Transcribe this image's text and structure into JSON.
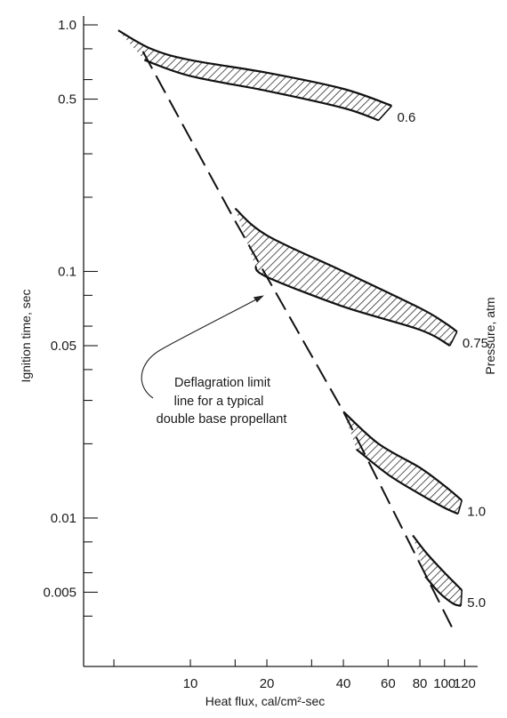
{
  "chart_data": {
    "type": "line",
    "xlabel": "Heat flux, cal/cm²-sec",
    "ylabel": "Ignition time, sec",
    "ylabel_right": "Pressure, atm",
    "x_scale": "log",
    "y_scale": "log",
    "xlim": [
      3.8,
      135
    ],
    "ylim": [
      0.0025,
      1.0
    ],
    "x_ticks": [
      {
        "v": 5,
        "label": ""
      },
      {
        "v": 10,
        "label": "10"
      },
      {
        "v": 15,
        "label": ""
      },
      {
        "v": 20,
        "label": "20"
      },
      {
        "v": 30,
        "label": ""
      },
      {
        "v": 40,
        "label": "40"
      },
      {
        "v": 60,
        "label": "60"
      },
      {
        "v": 80,
        "label": "80"
      },
      {
        "v": 100,
        "label": "100"
      },
      {
        "v": 120,
        "label": "120"
      }
    ],
    "y_ticks": [
      {
        "v": 1.0,
        "label": "1.0",
        "major": true
      },
      {
        "v": 0.8,
        "label": "",
        "major": false
      },
      {
        "v": 0.6,
        "label": "",
        "major": false
      },
      {
        "v": 0.5,
        "label": "0.5",
        "major": true
      },
      {
        "v": 0.4,
        "label": "",
        "major": false
      },
      {
        "v": 0.3,
        "label": "",
        "major": false
      },
      {
        "v": 0.2,
        "label": "",
        "major": false
      },
      {
        "v": 0.1,
        "label": "0.1",
        "major": true
      },
      {
        "v": 0.08,
        "label": "",
        "major": false
      },
      {
        "v": 0.06,
        "label": "",
        "major": false
      },
      {
        "v": 0.05,
        "label": "0.05",
        "major": true
      },
      {
        "v": 0.04,
        "label": "",
        "major": false
      },
      {
        "v": 0.03,
        "label": "",
        "major": false
      },
      {
        "v": 0.02,
        "label": "",
        "major": false
      },
      {
        "v": 0.01,
        "label": "0.01",
        "major": true
      },
      {
        "v": 0.008,
        "label": "",
        "major": false
      },
      {
        "v": 0.006,
        "label": "",
        "major": false
      },
      {
        "v": 0.005,
        "label": "0.005",
        "major": true
      },
      {
        "v": 0.004,
        "label": "",
        "major": false
      }
    ],
    "series": [
      {
        "name": "0.6",
        "upper": [
          [
            5.2,
            0.95
          ],
          [
            7,
            0.8
          ],
          [
            10,
            0.72
          ],
          [
            20,
            0.64
          ],
          [
            40,
            0.55
          ],
          [
            62,
            0.47
          ]
        ],
        "lower": [
          [
            6.6,
            0.72
          ],
          [
            10,
            0.62
          ],
          [
            20,
            0.54
          ],
          [
            40,
            0.46
          ],
          [
            55,
            0.41
          ]
        ]
      },
      {
        "name": "0.75",
        "upper": [
          [
            15,
            0.18
          ],
          [
            20,
            0.14
          ],
          [
            40,
            0.1
          ],
          [
            80,
            0.071
          ],
          [
            100,
            0.062
          ],
          [
            112,
            0.057
          ]
        ],
        "lower": [
          [
            18,
            0.105
          ],
          [
            20,
            0.095
          ],
          [
            40,
            0.072
          ],
          [
            80,
            0.058
          ],
          [
            105,
            0.05
          ]
        ]
      },
      {
        "name": "1.0",
        "upper": [
          [
            40,
            0.027
          ],
          [
            55,
            0.02
          ],
          [
            80,
            0.016
          ],
          [
            100,
            0.0135
          ],
          [
            117,
            0.0118
          ]
        ],
        "lower": [
          [
            45,
            0.019
          ],
          [
            60,
            0.015
          ],
          [
            80,
            0.0125
          ],
          [
            100,
            0.011
          ],
          [
            113,
            0.0104
          ]
        ]
      },
      {
        "name": "5.0",
        "upper": [
          [
            75,
            0.0085
          ],
          [
            85,
            0.0072
          ],
          [
            100,
            0.006
          ],
          [
            117,
            0.0051
          ]
        ],
        "lower": [
          [
            84,
            0.0058
          ],
          [
            95,
            0.005
          ],
          [
            108,
            0.0045
          ],
          [
            116,
            0.0044
          ]
        ]
      }
    ],
    "deflagration_limit": [
      [
        6.5,
        0.78
      ],
      [
        15,
        0.16
      ],
      [
        40,
        0.027
      ],
      [
        110,
        0.0034
      ]
    ],
    "annotation": {
      "lines": [
        "Deflagration limit",
        "line for a typical",
        "double base propellant"
      ],
      "points_to": [
        19.5,
        0.08
      ]
    }
  }
}
